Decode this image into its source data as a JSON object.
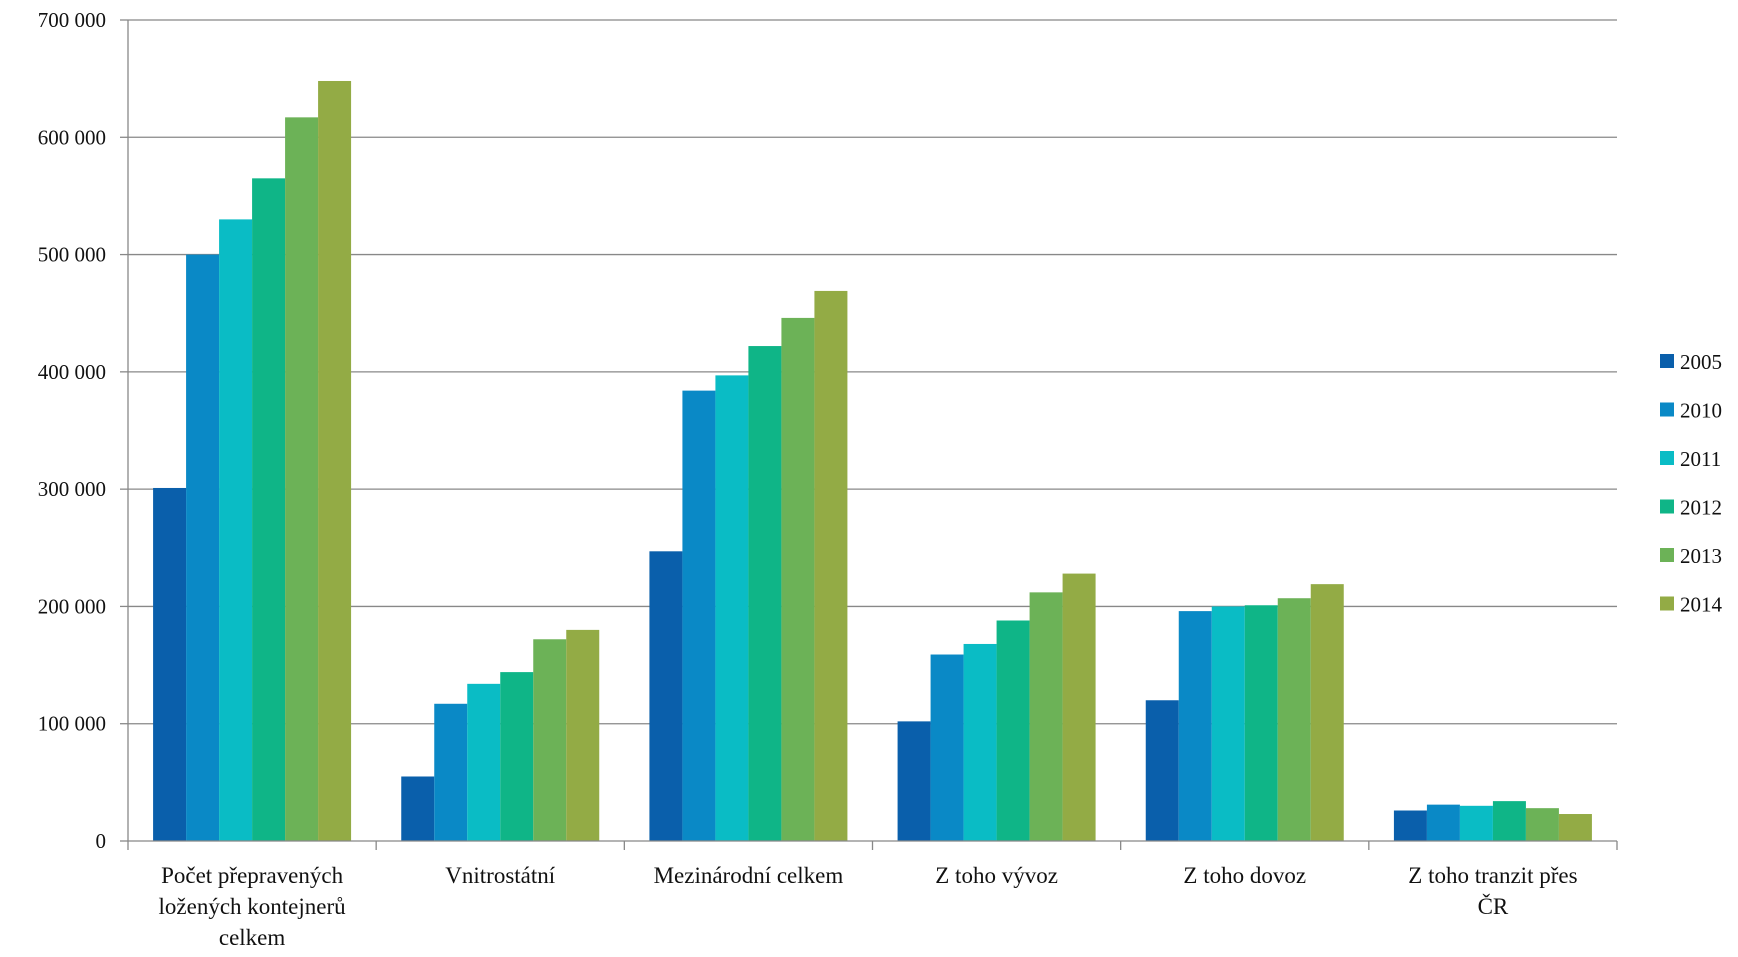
{
  "chart_data": {
    "type": "bar",
    "title": "",
    "xlabel": "",
    "ylabel": "",
    "ylim": [
      0,
      700000
    ],
    "yticks": [
      0,
      100000,
      200000,
      300000,
      400000,
      500000,
      600000,
      700000
    ],
    "ytick_labels": [
      "0",
      "100 000",
      "200 000",
      "300 000",
      "400 000",
      "500 000",
      "600 000",
      "700 000"
    ],
    "grid": true,
    "legend_position": "right",
    "categories": [
      [
        "Počet přepravených",
        "ložených kontejnerů",
        "celkem"
      ],
      [
        "Vnitrostátní"
      ],
      [
        "Mezinárodní celkem"
      ],
      [
        "Z toho vývoz"
      ],
      [
        "Z toho dovoz"
      ],
      [
        "Z toho tranzit přes",
        "ČR"
      ]
    ],
    "series": [
      {
        "name": "2005",
        "color": "#0a5fab",
        "values": [
          301000,
          55000,
          247000,
          102000,
          120000,
          26000
        ]
      },
      {
        "name": "2010",
        "color": "#0a89c6",
        "values": [
          500000,
          117000,
          384000,
          159000,
          196000,
          31000
        ]
      },
      {
        "name": "2011",
        "color": "#0abcc5",
        "values": [
          530000,
          134000,
          397000,
          168000,
          200000,
          30000
        ]
      },
      {
        "name": "2012",
        "color": "#0fb587",
        "values": [
          565000,
          144000,
          422000,
          188000,
          201000,
          34000
        ]
      },
      {
        "name": "2013",
        "color": "#6cb257",
        "values": [
          617000,
          172000,
          446000,
          212000,
          207000,
          28000
        ]
      },
      {
        "name": "2014",
        "color": "#93ab45",
        "values": [
          648000,
          180000,
          469000,
          228000,
          219000,
          23000
        ]
      }
    ]
  }
}
